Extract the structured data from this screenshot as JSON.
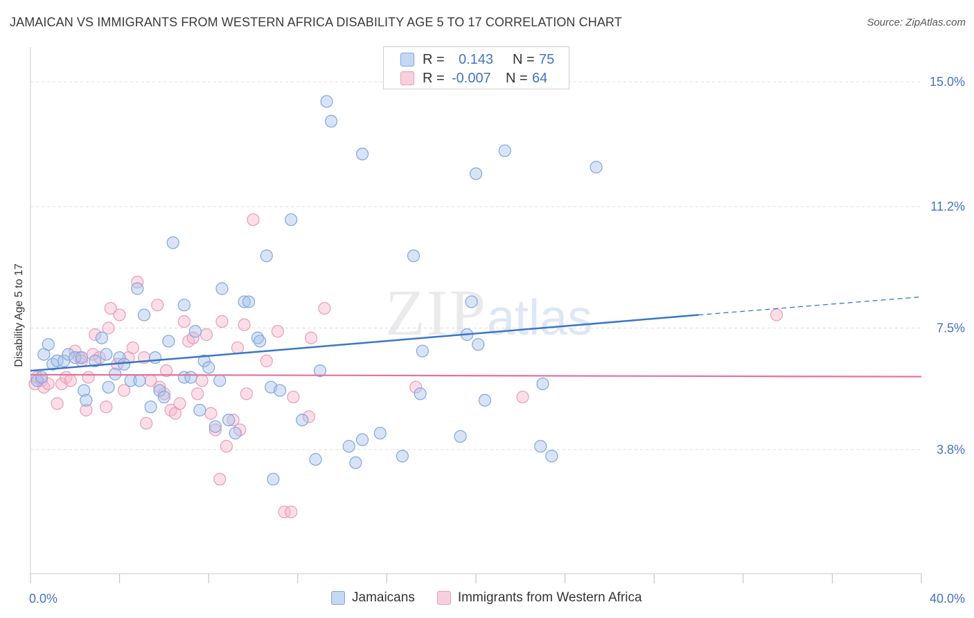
{
  "title": "JAMAICAN VS IMMIGRANTS FROM WESTERN AFRICA DISABILITY AGE 5 TO 17 CORRELATION CHART",
  "source": "Source: ZipAtlas.com",
  "watermark": {
    "zip": "ZIP",
    "atlas": "atlas"
  },
  "legend": {
    "rows": [
      {
        "r_label": "R =",
        "r_value": "0.143",
        "n_label": "N =",
        "n_value": "75"
      },
      {
        "r_label": "R =",
        "r_value": "-0.007",
        "n_label": "N =",
        "n_value": "64"
      }
    ]
  },
  "bottom_legend": [
    "Jamaicans",
    "Immigrants from Western Africa"
  ],
  "colors": {
    "blue_fill": "#a9c4ec",
    "blue_stroke": "#7ea6e0",
    "blue_line": "#3a76c8",
    "pink_fill": "#f4b8cb",
    "pink_stroke": "#ec9ab5",
    "pink_line": "#e8709a",
    "grid": "#dddddd",
    "tick_label": "#4472c4"
  },
  "chart_data": {
    "type": "scatter",
    "title": "JAMAICAN VS IMMIGRANTS FROM WESTERN AFRICA DISABILITY AGE 5 TO 17 CORRELATION CHART",
    "xlabel": "",
    "ylabel": "Disability Age 5 to 17",
    "xlim": [
      0,
      40
    ],
    "ylim": [
      0,
      15.5
    ],
    "x_tick_labels": [
      "0.0%",
      "40.0%"
    ],
    "y_ticks": [
      3.8,
      7.5,
      11.2,
      15.0
    ],
    "y_tick_labels": [
      "3.8%",
      "7.5%",
      "11.2%",
      "15.0%"
    ],
    "grid": true,
    "legend_position": "top-center",
    "series": [
      {
        "name": "Jamaicans",
        "trend": {
          "x": [
            0,
            30
          ],
          "y": [
            6.2,
            7.9
          ]
        },
        "trend_dashed": {
          "x": [
            30,
            40
          ],
          "y": [
            7.9,
            8.45
          ]
        },
        "points": [
          [
            0.3,
            5.9
          ],
          [
            0.5,
            6.0
          ],
          [
            0.6,
            6.7
          ],
          [
            0.8,
            7.0
          ],
          [
            1.0,
            6.4
          ],
          [
            1.2,
            6.5
          ],
          [
            1.5,
            6.5
          ],
          [
            1.7,
            6.7
          ],
          [
            2.0,
            6.6
          ],
          [
            2.3,
            6.6
          ],
          [
            2.4,
            5.6
          ],
          [
            2.5,
            5.3
          ],
          [
            2.9,
            6.5
          ],
          [
            3.2,
            7.2
          ],
          [
            3.4,
            6.7
          ],
          [
            3.5,
            5.7
          ],
          [
            3.8,
            6.1
          ],
          [
            4.0,
            6.6
          ],
          [
            4.2,
            6.4
          ],
          [
            4.5,
            5.9
          ],
          [
            4.8,
            8.7
          ],
          [
            4.9,
            5.9
          ],
          [
            5.1,
            7.9
          ],
          [
            5.4,
            5.1
          ],
          [
            5.6,
            6.6
          ],
          [
            5.8,
            5.6
          ],
          [
            6.0,
            5.4
          ],
          [
            6.2,
            7.1
          ],
          [
            6.4,
            10.1
          ],
          [
            6.9,
            8.2
          ],
          [
            6.9,
            6.0
          ],
          [
            7.2,
            6.0
          ],
          [
            7.4,
            7.4
          ],
          [
            7.6,
            5.0
          ],
          [
            7.8,
            6.5
          ],
          [
            8.0,
            6.3
          ],
          [
            8.3,
            4.5
          ],
          [
            8.5,
            5.9
          ],
          [
            8.6,
            8.7
          ],
          [
            8.9,
            4.7
          ],
          [
            9.2,
            4.3
          ],
          [
            9.6,
            8.3
          ],
          [
            9.8,
            8.3
          ],
          [
            10.2,
            7.2
          ],
          [
            10.3,
            7.1
          ],
          [
            10.6,
            9.7
          ],
          [
            10.8,
            5.7
          ],
          [
            11.2,
            5.6
          ],
          [
            10.9,
            2.9
          ],
          [
            11.7,
            10.8
          ],
          [
            12.2,
            4.7
          ],
          [
            12.8,
            3.5
          ],
          [
            13.0,
            6.2
          ],
          [
            13.3,
            14.4
          ],
          [
            13.5,
            13.8
          ],
          [
            14.3,
            3.9
          ],
          [
            14.6,
            3.4
          ],
          [
            14.9,
            12.8
          ],
          [
            14.9,
            4.1
          ],
          [
            15.7,
            4.3
          ],
          [
            16.7,
            3.6
          ],
          [
            17.2,
            9.7
          ],
          [
            17.5,
            5.5
          ],
          [
            17.6,
            6.8
          ],
          [
            19.3,
            4.2
          ],
          [
            19.6,
            7.3
          ],
          [
            19.8,
            8.3
          ],
          [
            20.0,
            12.2
          ],
          [
            20.1,
            7.0
          ],
          [
            20.4,
            5.3
          ],
          [
            21.3,
            12.9
          ],
          [
            22.9,
            3.9
          ],
          [
            23.0,
            5.8
          ],
          [
            23.4,
            3.6
          ],
          [
            25.4,
            12.4
          ]
        ]
      },
      {
        "name": "Immigrants from Western Africa",
        "trend": {
          "x": [
            0,
            40
          ],
          "y": [
            6.08,
            6.02
          ]
        },
        "points": [
          [
            0.2,
            5.8
          ],
          [
            0.3,
            6.0
          ],
          [
            0.5,
            5.9
          ],
          [
            0.6,
            5.7
          ],
          [
            0.8,
            5.8
          ],
          [
            1.2,
            5.2
          ],
          [
            1.4,
            5.8
          ],
          [
            1.6,
            6.0
          ],
          [
            1.8,
            5.9
          ],
          [
            2.0,
            6.8
          ],
          [
            2.2,
            6.6
          ],
          [
            2.3,
            6.5
          ],
          [
            2.5,
            5.0
          ],
          [
            2.6,
            6.0
          ],
          [
            2.8,
            6.7
          ],
          [
            2.9,
            7.3
          ],
          [
            3.1,
            6.6
          ],
          [
            3.4,
            5.1
          ],
          [
            3.5,
            7.5
          ],
          [
            3.6,
            8.1
          ],
          [
            3.9,
            6.4
          ],
          [
            4.0,
            7.9
          ],
          [
            4.2,
            5.6
          ],
          [
            4.4,
            6.6
          ],
          [
            4.6,
            6.9
          ],
          [
            4.8,
            8.9
          ],
          [
            5.1,
            6.6
          ],
          [
            5.2,
            4.6
          ],
          [
            5.4,
            5.9
          ],
          [
            5.7,
            8.2
          ],
          [
            5.8,
            5.7
          ],
          [
            6.0,
            5.5
          ],
          [
            6.1,
            6.2
          ],
          [
            6.3,
            5.0
          ],
          [
            6.5,
            4.9
          ],
          [
            6.7,
            5.2
          ],
          [
            6.9,
            7.7
          ],
          [
            7.1,
            7.1
          ],
          [
            7.3,
            7.2
          ],
          [
            7.5,
            5.5
          ],
          [
            7.7,
            5.9
          ],
          [
            7.9,
            7.3
          ],
          [
            8.1,
            4.9
          ],
          [
            8.3,
            4.4
          ],
          [
            8.5,
            2.9
          ],
          [
            8.6,
            7.7
          ],
          [
            8.8,
            3.9
          ],
          [
            9.1,
            4.7
          ],
          [
            9.3,
            6.9
          ],
          [
            9.4,
            4.4
          ],
          [
            9.6,
            7.6
          ],
          [
            9.7,
            5.5
          ],
          [
            10.0,
            10.8
          ],
          [
            10.6,
            6.5
          ],
          [
            11.1,
            7.4
          ],
          [
            11.4,
            1.9
          ],
          [
            11.7,
            1.9
          ],
          [
            11.8,
            5.4
          ],
          [
            12.5,
            4.8
          ],
          [
            12.6,
            7.2
          ],
          [
            13.2,
            8.1
          ],
          [
            17.3,
            5.7
          ],
          [
            22.1,
            5.4
          ],
          [
            33.5,
            7.9
          ]
        ]
      }
    ]
  }
}
